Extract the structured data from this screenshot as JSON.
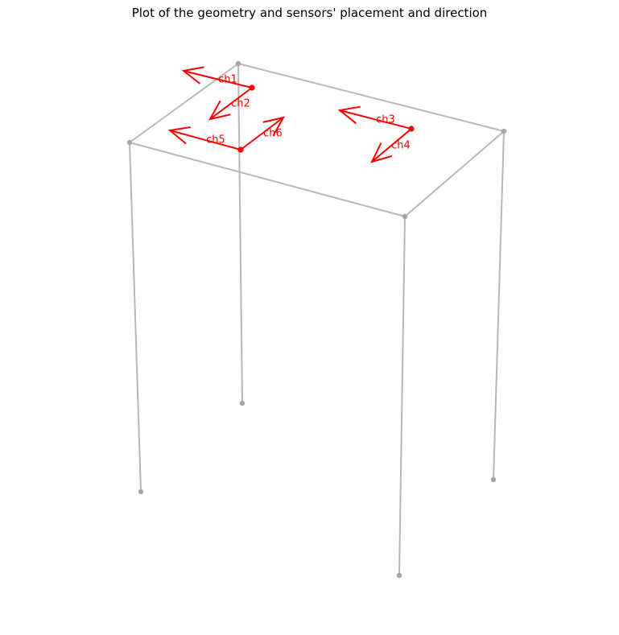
{
  "title": "Plot of the geometry and sensors' placement and direction",
  "colors": {
    "frame": "#b8b8b8",
    "node": "#a6a6a6",
    "sensor": "#ff0000",
    "background": "#ffffff"
  },
  "sensors": [
    {
      "channel": "ch1"
    },
    {
      "channel": "ch2"
    },
    {
      "channel": "ch3"
    },
    {
      "channel": "ch4"
    },
    {
      "channel": "ch5"
    },
    {
      "channel": "ch6"
    }
  ]
}
